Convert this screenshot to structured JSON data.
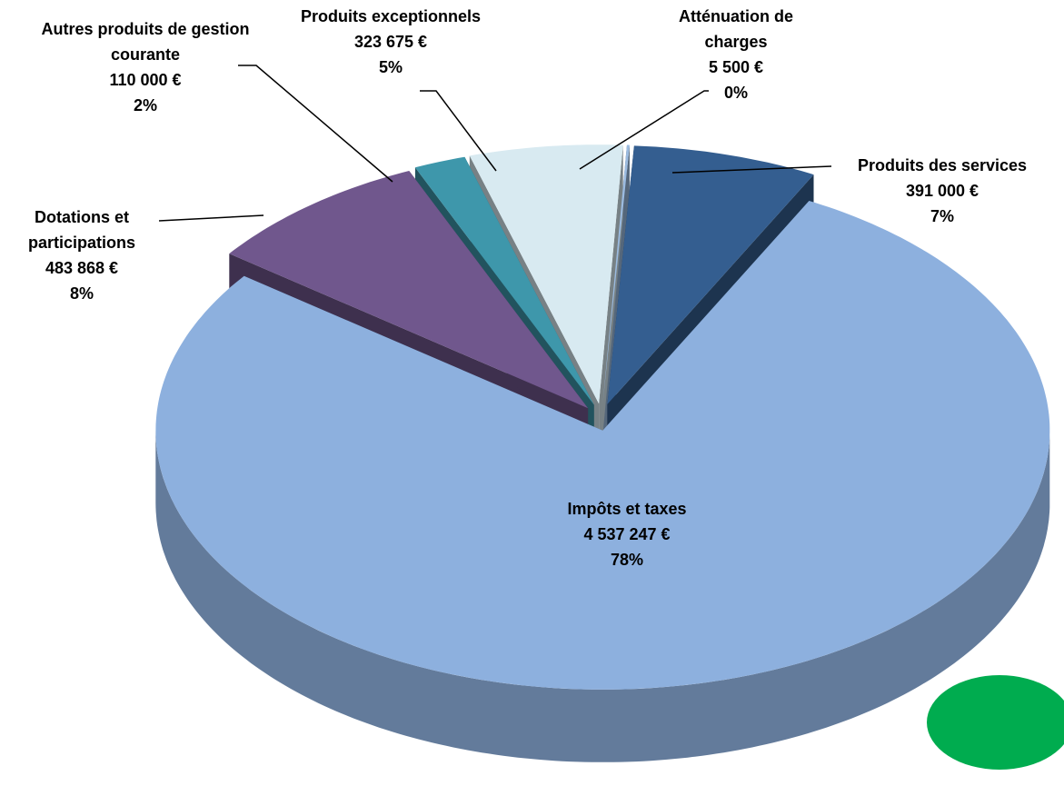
{
  "chart_data": {
    "type": "pie",
    "categories": [
      "Produits des services",
      "Impôts et taxes",
      "Dotations et participations",
      "Autres produits de gestion courante",
      "Produits exceptionnels",
      "Atténuation de charges"
    ],
    "values": [
      391000,
      4537247,
      483868,
      110000,
      323675,
      5500
    ],
    "value_labels": [
      "391 000 €",
      "4 537 247 €",
      "483 868 €",
      "110 000 €",
      "323 675 €",
      "5 500 €"
    ],
    "percent_labels": [
      "7%",
      "78%",
      "8%",
      "2%",
      "5%",
      "0%"
    ],
    "colors": [
      "#345e90",
      "#8db0de",
      "#70578d",
      "#3e97ab",
      "#d8eaf1",
      "#9bbbe0"
    ]
  }
}
